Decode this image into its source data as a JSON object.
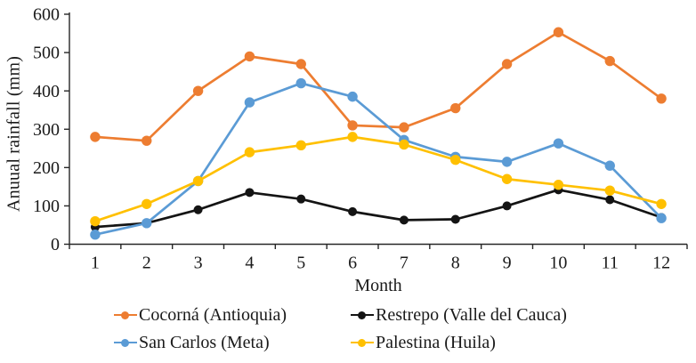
{
  "chart_data": {
    "type": "line",
    "title": "",
    "xlabel": "Month",
    "ylabel": "Anuual rainfall (mm)",
    "x": [
      1,
      2,
      3,
      4,
      5,
      6,
      7,
      8,
      9,
      10,
      11,
      12
    ],
    "ylim": [
      0,
      600
    ],
    "ytick_step": 100,
    "grid": false,
    "legend_position": "bottom",
    "axis_color": "#262626",
    "series": [
      {
        "name": "Cocorná (Antioquia)",
        "color": "#ED7D31",
        "values": [
          280,
          270,
          400,
          490,
          470,
          310,
          305,
          355,
          470,
          553,
          478,
          380
        ]
      },
      {
        "name": "Restrepo (Valle del Cauca)",
        "color": "#141414",
        "values": [
          45,
          55,
          90,
          135,
          118,
          85,
          63,
          65,
          100,
          142,
          116,
          70
        ]
      },
      {
        "name": "San Carlos (Meta)",
        "color": "#5B9BD5",
        "values": [
          25,
          55,
          165,
          370,
          420,
          385,
          272,
          228,
          215,
          263,
          205,
          68
        ]
      },
      {
        "name": "Palestina (Huila)",
        "color": "#FFC000",
        "values": [
          60,
          105,
          165,
          240,
          258,
          280,
          260,
          220,
          170,
          155,
          140,
          105
        ]
      }
    ]
  }
}
